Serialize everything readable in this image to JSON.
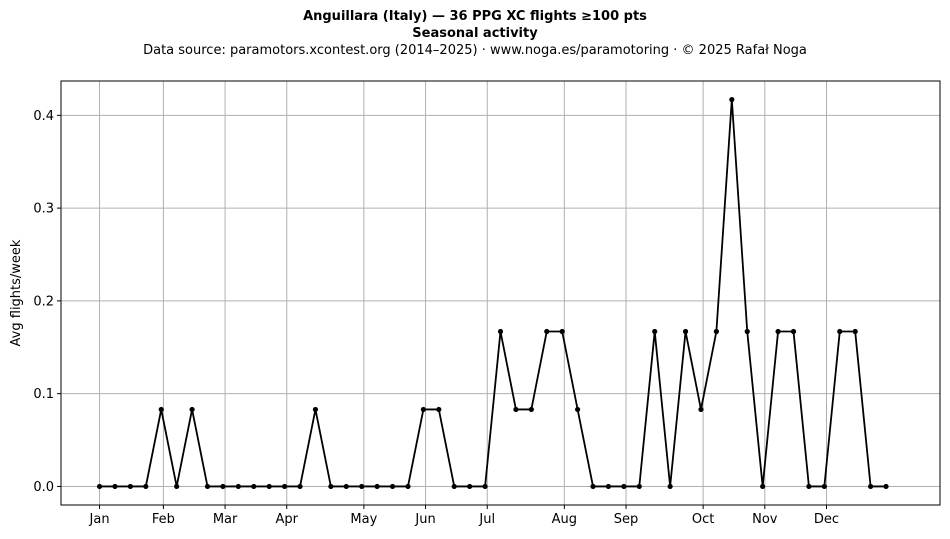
{
  "header": {
    "title": "Anguillara (Italy)  —  36 PPG XC flights ≥100 pts",
    "subtitle": "Seasonal activity",
    "source": "Data source: paramotors.xcontest.org (2014–2025)  ·  www.noga.es/paramotoring  ·  © 2025 Rafał Noga"
  },
  "chart_data": {
    "type": "line",
    "title": "Anguillara (Italy)  —  36 PPG XC flights ≥100 pts",
    "subtitle": "Seasonal activity",
    "xlabel": "",
    "ylabel": "Avg flights/week",
    "ylim": [
      -0.02,
      0.437
    ],
    "xlim": [
      -2.5,
      54.5
    ],
    "grid": true,
    "x_ticks": [
      {
        "label": "Jan",
        "x": 0
      },
      {
        "label": "Feb",
        "x": 4.14
      },
      {
        "label": "Mar",
        "x": 8.14
      },
      {
        "label": "Apr",
        "x": 12.14
      },
      {
        "label": "May",
        "x": 17.14
      },
      {
        "label": "Jun",
        "x": 21.14
      },
      {
        "label": "Jul",
        "x": 25.14
      },
      {
        "label": "Aug",
        "x": 30.14
      },
      {
        "label": "Sep",
        "x": 34.14
      },
      {
        "label": "Oct",
        "x": 39.14
      },
      {
        "label": "Nov",
        "x": 43.14
      },
      {
        "label": "Dec",
        "x": 47.14
      }
    ],
    "y_ticks": [
      {
        "label": "0.0",
        "y": 0.0
      },
      {
        "label": "0.1",
        "y": 0.1
      },
      {
        "label": "0.2",
        "y": 0.2
      },
      {
        "label": "0.3",
        "y": 0.3
      },
      {
        "label": "0.4",
        "y": 0.4
      }
    ],
    "series": [
      {
        "color": "#000000",
        "x": [
          0,
          1,
          2,
          3,
          4,
          5,
          6,
          7,
          8,
          9,
          10,
          11,
          12,
          13,
          14,
          15,
          16,
          17,
          18,
          19,
          20,
          21,
          22,
          23,
          24,
          25,
          26,
          27,
          28,
          29,
          30,
          31,
          32,
          33,
          34,
          35,
          36,
          37,
          38,
          39,
          40,
          41,
          42,
          43,
          44,
          45,
          46,
          47,
          48,
          49,
          50,
          51
        ],
        "values": [
          0,
          0,
          0,
          0,
          0.083,
          0,
          0.083,
          0,
          0,
          0,
          0,
          0,
          0,
          0,
          0.083,
          0,
          0,
          0,
          0,
          0,
          0,
          0.083,
          0.083,
          0,
          0,
          0,
          0.167,
          0.083,
          0.083,
          0.167,
          0.167,
          0.083,
          0,
          0,
          0,
          0,
          0.167,
          0,
          0.167,
          0.083,
          0.167,
          0.417,
          0.167,
          0,
          0.167,
          0.167,
          0,
          0,
          0.167,
          0.167,
          0,
          0
        ]
      }
    ]
  }
}
